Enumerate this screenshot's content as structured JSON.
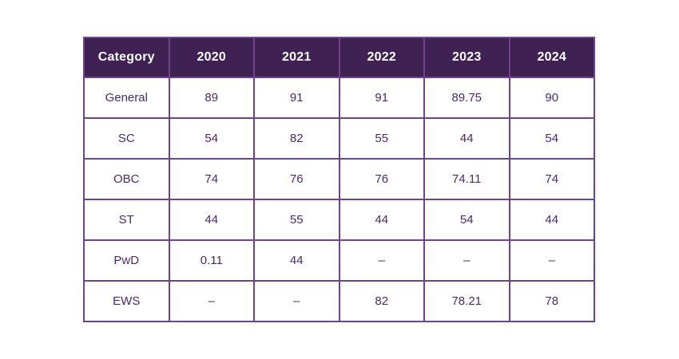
{
  "chart_data": {
    "type": "table",
    "columns": [
      "Category",
      "2020",
      "2021",
      "2022",
      "2023",
      "2024"
    ],
    "rows": [
      [
        "General",
        "89",
        "91",
        "91",
        "89.75",
        "90"
      ],
      [
        "SC",
        "54",
        "82",
        "55",
        "44",
        "54"
      ],
      [
        "OBC",
        "74",
        "76",
        "76",
        "74.11",
        "74"
      ],
      [
        "ST",
        "44",
        "55",
        "44",
        "54",
        "44"
      ],
      [
        "PwD",
        "0.11",
        "44",
        "–",
        "–",
        "–"
      ],
      [
        "EWS",
        "–",
        "–",
        "82",
        "78.21",
        "78"
      ]
    ],
    "layout": {
      "grid": "on",
      "header_position": "top"
    }
  },
  "colors": {
    "header_bg": "#3f2253",
    "header_text": "#ffffff",
    "body_text": "#4b2a66",
    "border": "#6e4487",
    "page_bg": "#ffffff"
  }
}
